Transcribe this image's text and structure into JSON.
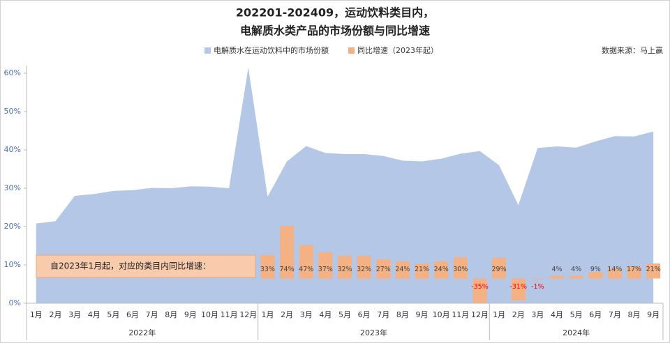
{
  "chart_data": {
    "type": "area_bar",
    "title": [
      "202201-202409，运动饮料类目内，",
      "电解质水类产品的市场份额与同比增速"
    ],
    "source": "数据来源：马上赢",
    "annotations": [
      "自2023年1月起，对应的类目内同比增速："
    ],
    "categories": [
      "1月",
      "2月",
      "3月",
      "4月",
      "5月",
      "6月",
      "7月",
      "8月",
      "9月",
      "10月",
      "11月",
      "12月",
      "1月",
      "2月",
      "3月",
      "4月",
      "5月",
      "6月",
      "7月",
      "8月",
      "9月",
      "10月",
      "11月",
      "12月",
      "1月",
      "2月",
      "3月",
      "4月",
      "5月",
      "6月",
      "7月",
      "8月",
      "9月"
    ],
    "category_groups": [
      "2022年",
      "2023年",
      "2024年"
    ],
    "ylim": [
      0,
      62
    ],
    "yticks": [
      {
        "value": 0,
        "label": "0%"
      },
      {
        "value": 10,
        "label": "10%"
      },
      {
        "value": 20,
        "label": "20%"
      },
      {
        "value": 30,
        "label": "30%"
      },
      {
        "value": 40,
        "label": "40%"
      },
      {
        "value": 50,
        "label": "50%"
      },
      {
        "value": 60,
        "label": "60%"
      }
    ],
    "y2lim": [
      -35,
      300
    ],
    "grid": false,
    "negative_label_color": "#ff0000",
    "series": [
      {
        "name": "电解质水在运动饮料中的市场份额",
        "kind": "area",
        "color": "#b4c7e7",
        "values": [
          20.8,
          21.4,
          28,
          28.5,
          29.3,
          29.5,
          30.1,
          30,
          30.5,
          30.4,
          30,
          61.5,
          27.8,
          37,
          41,
          39.2,
          38.9,
          38.9,
          38.4,
          37.2,
          37,
          37.7,
          39,
          39.7,
          36,
          25.6,
          40.5,
          40.9,
          40.6,
          42.2,
          43.6,
          43.5,
          44.8
        ]
      },
      {
        "name": "同比增速（2023年起）",
        "kind": "bar",
        "axis": "y2",
        "color": "#f4b183",
        "values": [
          null,
          null,
          null,
          null,
          null,
          null,
          null,
          null,
          null,
          null,
          null,
          null,
          33,
          74,
          47,
          37,
          32,
          32,
          27,
          24,
          21,
          24,
          30,
          -35,
          29,
          -31,
          -1,
          4,
          4,
          9,
          14,
          17,
          21
        ],
        "value_labels": [
          null,
          null,
          null,
          null,
          null,
          null,
          null,
          null,
          null,
          null,
          null,
          null,
          "33%",
          "74%",
          "47%",
          "37%",
          "32%",
          "32%",
          "27%",
          "24%",
          "21%",
          "24%",
          "30%",
          "-35%",
          "29%",
          "-31%",
          "-1%",
          "4%",
          "4%",
          "9%",
          "14%",
          "17%",
          "21%"
        ]
      }
    ]
  }
}
